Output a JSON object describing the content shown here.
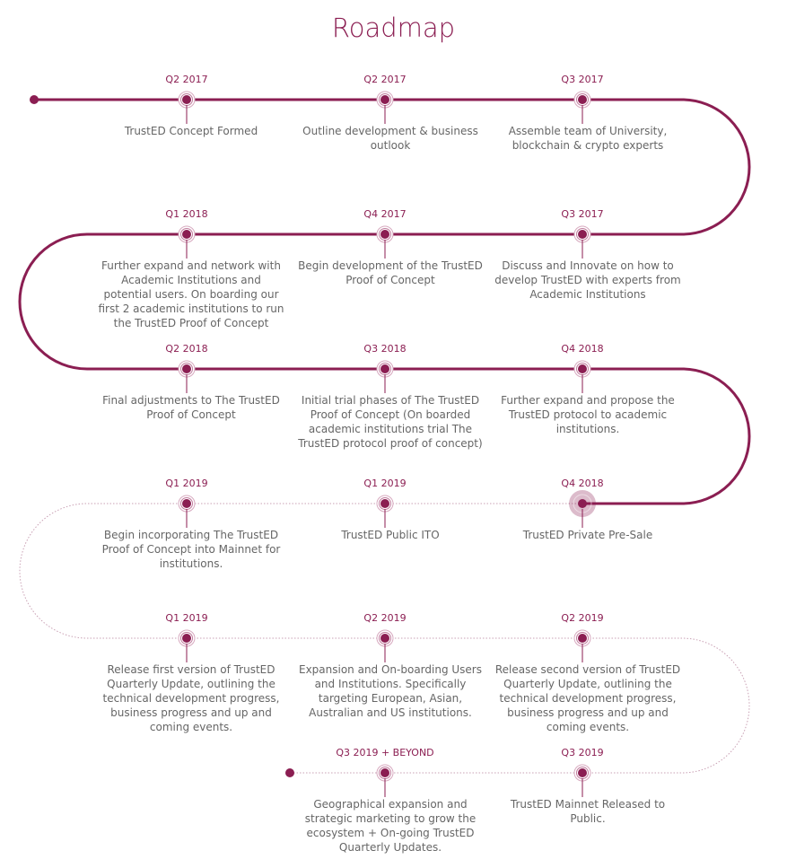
{
  "title": "Roadmap",
  "colors": {
    "accent": "#8b1e52",
    "text": "#666666"
  },
  "milestones": [
    {
      "date": "Q2 2017",
      "text": "TrustED Concept Formed"
    },
    {
      "date": "Q2 2017",
      "text": "Outline development & business outlook"
    },
    {
      "date": "Q3 2017",
      "text": "Assemble team of University, blockchain & crypto experts"
    },
    {
      "date": "Q1 2018",
      "text": "Further expand and network with Academic Institutions and potential users. On boarding our first 2 academic institutions to run the TrustED Proof of Concept"
    },
    {
      "date": "Q4 2017",
      "text": "Begin development of the TrustED Proof of Concept"
    },
    {
      "date": "Q3 2017",
      "text": "Discuss and Innovate on how to develop TrustED with experts from Academic Institutions"
    },
    {
      "date": "Q2 2018",
      "text": "Final adjustments to The TrustED Proof of Concept"
    },
    {
      "date": "Q3 2018",
      "text": "Initial trial phases of The TrustED Proof of Concept (On boarded academic institutions trial The TrustED protocol proof of concept)"
    },
    {
      "date": "Q4 2018",
      "text": "Further expand and propose the TrustED protocol to academic institutions."
    },
    {
      "date": "Q1 2019",
      "text": "Begin incorporating The TrustED Proof of Concept into Mainnet for institutions."
    },
    {
      "date": "Q1 2019",
      "text": "TrustED Public ITO"
    },
    {
      "date": "Q4 2018",
      "text": "TrustED Private Pre-Sale",
      "current": true
    },
    {
      "date": "Q1 2019",
      "text": "Release first version of TrustED Quarterly Update, outlining the technical development progress, business progress and up and coming events."
    },
    {
      "date": "Q2 2019",
      "text": "Expansion and On-boarding Users and Institutions. Specifically targeting European, Asian, Australian and US institutions."
    },
    {
      "date": "Q2 2019",
      "text": "Release second version of TrustED Quarterly Update, outlining the technical development progress, business progress and up and coming events."
    },
    {
      "date": "Q3 2019 + BEYOND",
      "text": "Geographical expansion and strategic marketing to grow the ecosystem + On-going TrustED Quarterly Updates."
    },
    {
      "date": "Q3 2019",
      "text": "TrustED Mainnet Released to Public."
    }
  ]
}
